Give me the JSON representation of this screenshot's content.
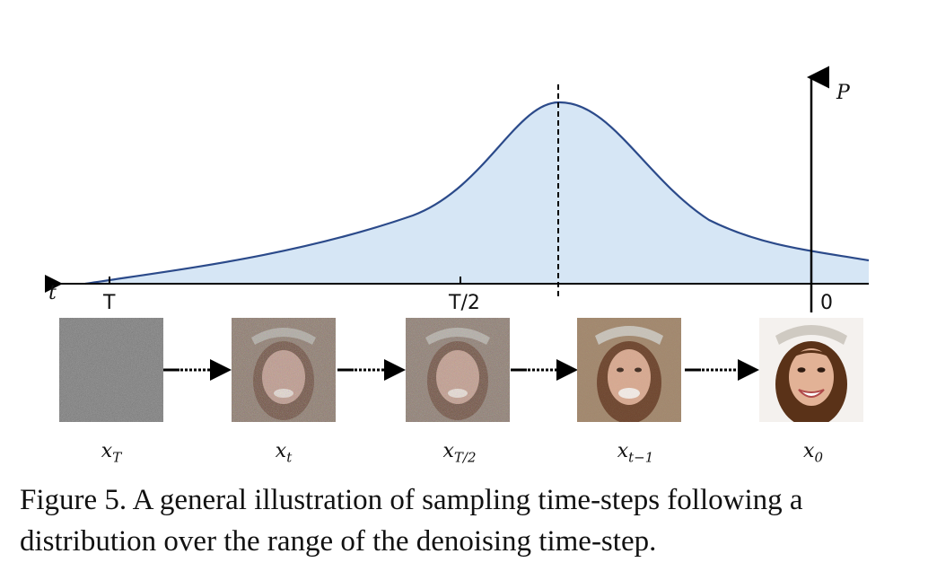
{
  "axis": {
    "time_label": "t",
    "prob_label": "P",
    "ticks": [
      "T",
      "T/2",
      "0"
    ]
  },
  "colors": {
    "curve": "#2b4a8a",
    "fill": "#d6e6f5",
    "axis": "#000000"
  },
  "samples": [
    {
      "name": "x",
      "sub": "T",
      "noise": 1.0
    },
    {
      "name": "x",
      "sub": "t",
      "noise": 0.75
    },
    {
      "name": "x",
      "sub": "T/2",
      "noise": 0.7
    },
    {
      "name": "x",
      "sub": "t−1",
      "noise": 0.3
    },
    {
      "name": "x",
      "sub": "0",
      "noise": 0.0
    }
  ],
  "caption": "Figure 5. A general illustration of sampling time-steps following a distribution over the range of the denoising time-step."
}
